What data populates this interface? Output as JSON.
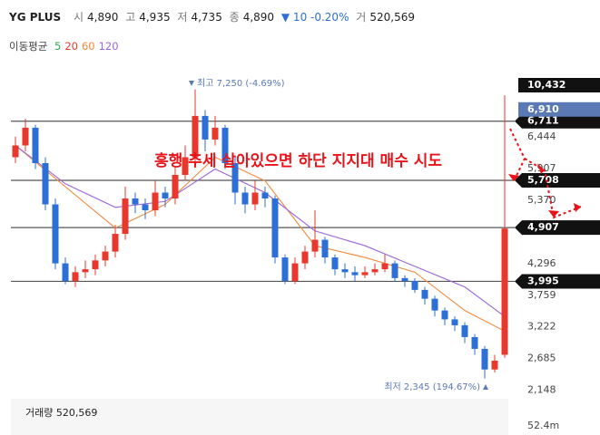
{
  "chart_data": {
    "type": "candlestick",
    "header": {
      "name": "YG PLUS",
      "open_label": "시",
      "open": "4,890",
      "high_label": "고",
      "high": "4,935",
      "low_label": "저",
      "low": "4,735",
      "close_label": "종",
      "close": "4,890",
      "change": "▼ 10 -0.20%",
      "volume_label": "거",
      "volume": "520,569"
    },
    "ma_legend": {
      "label": "이동평균",
      "items": [
        {
          "name": "5",
          "color": "#33a853"
        },
        {
          "name": "20",
          "color": "#e8372c"
        },
        {
          "name": "60",
          "color": "#f0883a"
        },
        {
          "name": "120",
          "color": "#9a66d9"
        }
      ]
    },
    "up_color": "#e8372c",
    "down_color": "#2c6fd6",
    "ohlc": [
      [
        6100,
        6450,
        6000,
        6300
      ],
      [
        6300,
        6750,
        6200,
        6600
      ],
      [
        6600,
        6650,
        5900,
        6000
      ],
      [
        6000,
        6100,
        5200,
        5300
      ],
      [
        5300,
        5400,
        4200,
        4300
      ],
      [
        4300,
        4400,
        3950,
        4000
      ],
      [
        4000,
        4250,
        3900,
        4150
      ],
      [
        4150,
        4350,
        4050,
        4200
      ],
      [
        4200,
        4450,
        4100,
        4350
      ],
      [
        4350,
        4600,
        4250,
        4500
      ],
      [
        4500,
        4950,
        4400,
        4800
      ],
      [
        4800,
        5600,
        4700,
        5400
      ],
      [
        5400,
        5500,
        5150,
        5300
      ],
      [
        5300,
        5400,
        5050,
        5200
      ],
      [
        5200,
        5700,
        5100,
        5500
      ],
      [
        5500,
        5600,
        5250,
        5400
      ],
      [
        5400,
        5950,
        5300,
        5800
      ],
      [
        5800,
        6300,
        5700,
        6100
      ],
      [
        6100,
        7250,
        6000,
        6800
      ],
      [
        6800,
        6900,
        6200,
        6400
      ],
      [
        6400,
        6800,
        6300,
        6600
      ],
      [
        6600,
        6650,
        5900,
        6000
      ],
      [
        6000,
        6100,
        5300,
        5500
      ],
      [
        5500,
        5600,
        5150,
        5300
      ],
      [
        5300,
        5700,
        5200,
        5500
      ],
      [
        5500,
        5600,
        5250,
        5400
      ],
      [
        5400,
        5450,
        4300,
        4400
      ],
      [
        4400,
        4450,
        3950,
        4000
      ],
      [
        4000,
        4400,
        3950,
        4300
      ],
      [
        4300,
        4600,
        4200,
        4500
      ],
      [
        4500,
        5200,
        4400,
        4700
      ],
      [
        4700,
        4750,
        4300,
        4400
      ],
      [
        4400,
        4450,
        4100,
        4200
      ],
      [
        4200,
        4300,
        4050,
        4150
      ],
      [
        4150,
        4250,
        4000,
        4100
      ],
      [
        4100,
        4250,
        4050,
        4150
      ],
      [
        4150,
        4300,
        4100,
        4200
      ],
      [
        4200,
        4450,
        4150,
        4300
      ],
      [
        4300,
        4350,
        4000,
        4050
      ],
      [
        4050,
        4100,
        3900,
        4000
      ],
      [
        4000,
        4050,
        3800,
        3850
      ],
      [
        3850,
        3900,
        3600,
        3700
      ],
      [
        3700,
        3750,
        3400,
        3500
      ],
      [
        3500,
        3550,
        3250,
        3350
      ],
      [
        3350,
        3400,
        3150,
        3250
      ],
      [
        3250,
        3300,
        2950,
        3050
      ],
      [
        3050,
        3100,
        2750,
        2850
      ],
      [
        2850,
        2900,
        2345,
        2500
      ],
      [
        2500,
        2750,
        2450,
        2650
      ],
      [
        2750,
        7150,
        2700,
        4890
      ]
    ],
    "ma": [
      {
        "color": "#f0883a",
        "x": [
          0,
          5,
          10,
          15,
          20,
          25,
          30,
          35,
          40,
          45,
          49
        ],
        "values": [
          6300,
          5600,
          4900,
          5300,
          6100,
          5700,
          4600,
          4400,
          4150,
          3500,
          3150
        ]
      },
      {
        "color": "#9a66d9",
        "x": [
          0,
          5,
          10,
          15,
          20,
          25,
          30,
          35,
          40,
          45,
          49
        ],
        "values": [
          6300,
          5650,
          5250,
          5350,
          5900,
          5500,
          4850,
          4600,
          4250,
          3900,
          3400
        ]
      }
    ],
    "ylim": [
      2050,
      7260
    ],
    "yticks": [
      {
        "value": 6444,
        "label": "6,444"
      },
      {
        "value": 5907,
        "label": "5,907"
      },
      {
        "value": 5370,
        "label": "5,370"
      },
      {
        "value": 4296,
        "label": "4,296"
      },
      {
        "value": 3759,
        "label": "3,759"
      },
      {
        "value": 3222,
        "label": "3,222"
      },
      {
        "value": 2685,
        "label": "2,685"
      },
      {
        "value": 2148,
        "label": "2,148"
      }
    ],
    "levels": [
      {
        "value": 6711,
        "label": "6,711"
      },
      {
        "value": 5708,
        "label": "5,708"
      },
      {
        "value": 4907,
        "label": "4,907"
      },
      {
        "value": 3995,
        "label": "3,995"
      }
    ],
    "marker": {
      "value": 6910,
      "label": "6,910",
      "color": "#5b79b5"
    },
    "top_label": "10,432",
    "high_note": "최고 7,250 (-4.69%)",
    "low_note": "최저 2,345 (194.67%)",
    "annotation": "흥행 추세 살아있으면 하단 지지대 매수 시도",
    "volume_panel": {
      "label": "거래량 520,569",
      "axis_label": "52.4m"
    }
  }
}
